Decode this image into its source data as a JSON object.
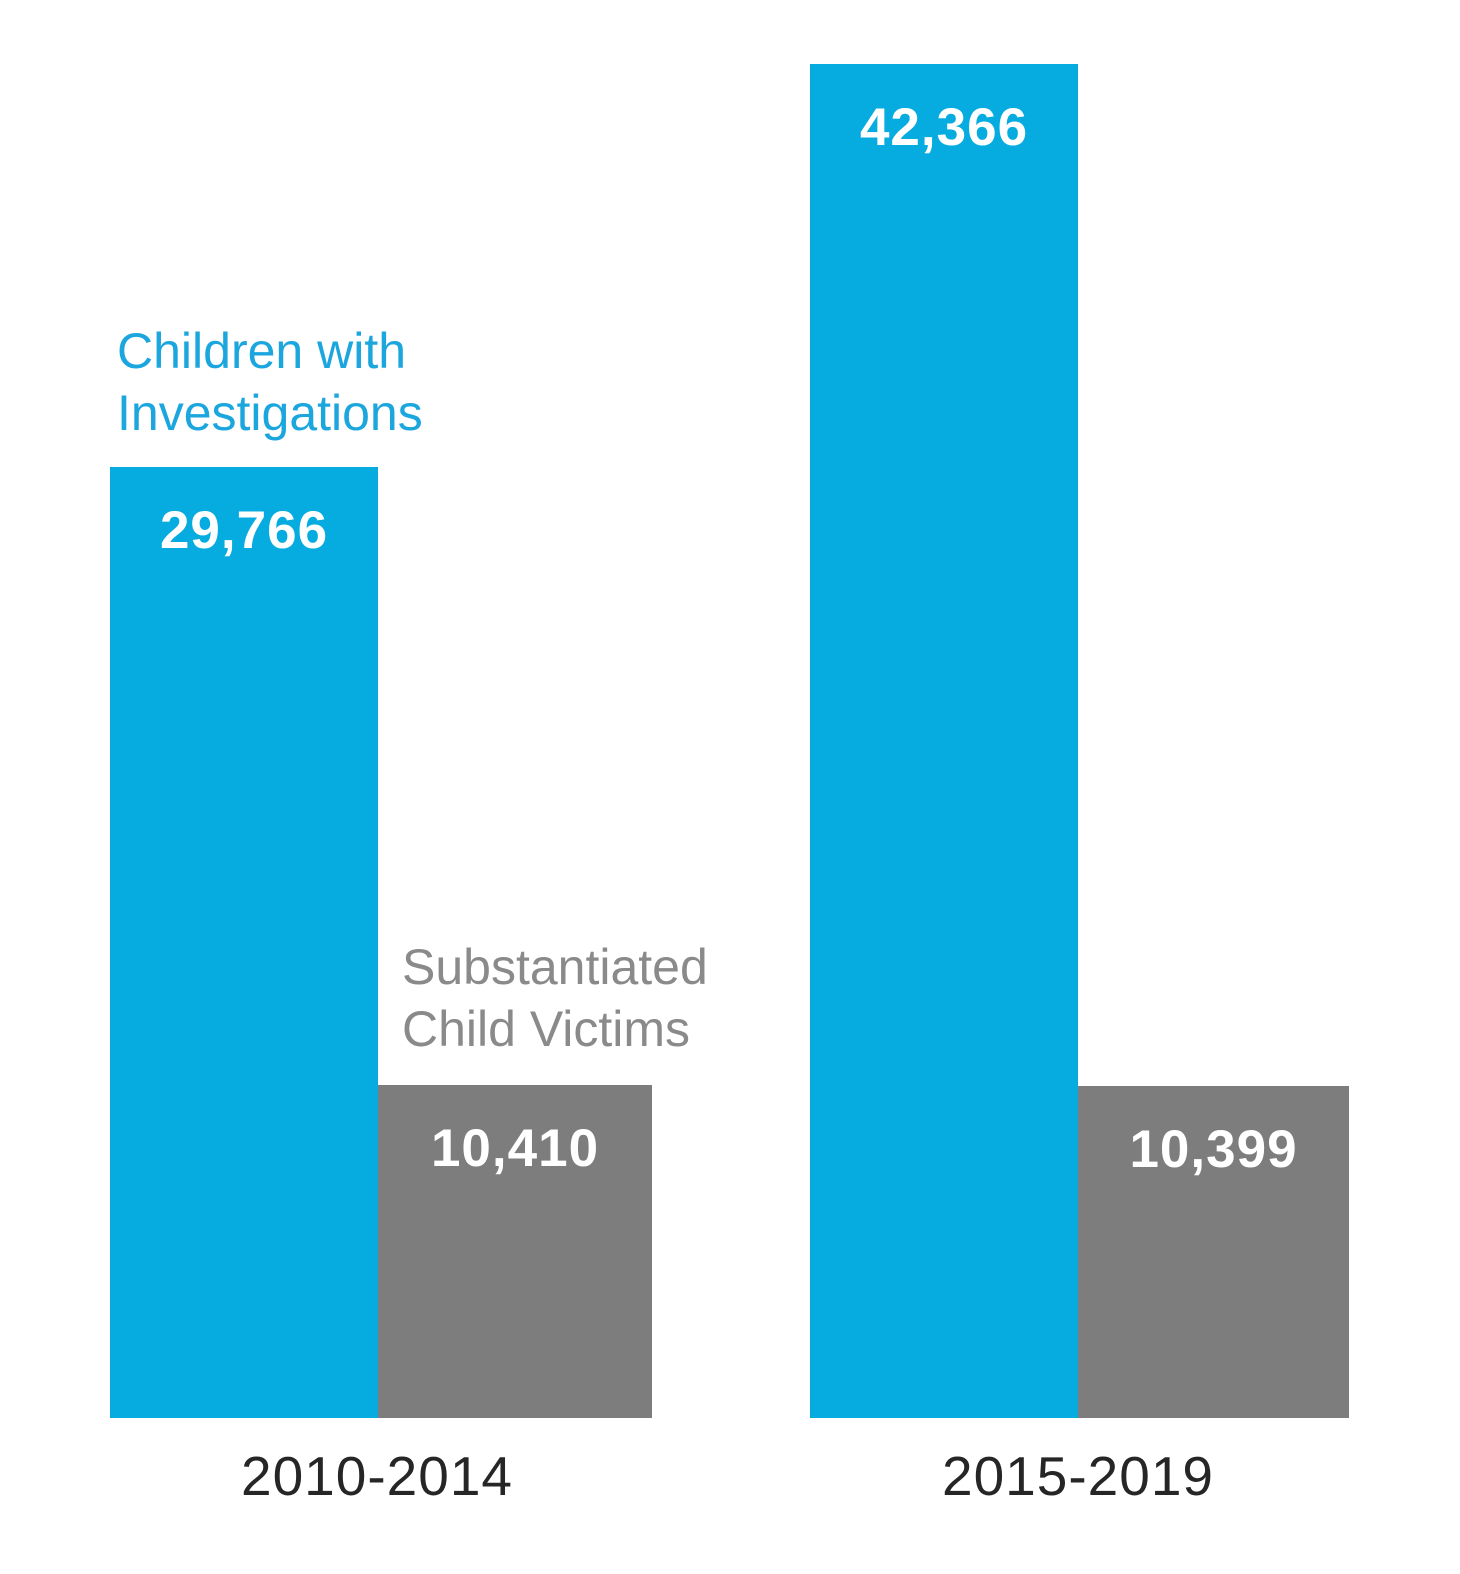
{
  "chart_data": {
    "type": "bar",
    "grouping": "grouped",
    "title": "",
    "categories": [
      "2010-2014",
      "2015-2019"
    ],
    "series": [
      {
        "name": "Children with Investigations",
        "values": [
          29766,
          42366
        ],
        "value_labels": [
          "29,766",
          "42,366"
        ],
        "color": "#06ACDF",
        "annotation_color": "#1CA6DE"
      },
      {
        "name": "Substantiated Child Victims",
        "values": [
          10410,
          10399
        ],
        "value_labels": [
          "10,410",
          "10,399"
        ],
        "color": "#7D7D7D",
        "annotation_color": "#8A8A8A"
      }
    ],
    "value_axis": {
      "min": 0,
      "implied_max": 44000,
      "visible": false
    },
    "gridlines": false,
    "legend_position": "inline-text-annotations",
    "value_label_style": "white bold, inside bar near top, centered",
    "value_label_color": "#FFFFFF",
    "category_label_color": "#262626"
  }
}
